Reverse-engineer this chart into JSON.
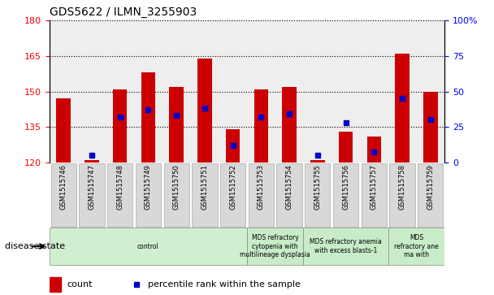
{
  "title": "GDS5622 / ILMN_3255903",
  "samples": [
    "GSM1515746",
    "GSM1515747",
    "GSM1515748",
    "GSM1515749",
    "GSM1515750",
    "GSM1515751",
    "GSM1515752",
    "GSM1515753",
    "GSM1515754",
    "GSM1515755",
    "GSM1515756",
    "GSM1515757",
    "GSM1515758",
    "GSM1515759"
  ],
  "counts": [
    147,
    121,
    151,
    158,
    152,
    164,
    134,
    151,
    152,
    121,
    133,
    131,
    166,
    150
  ],
  "percentile_ranks": [
    null,
    5,
    32,
    37,
    33,
    38,
    12,
    32,
    34,
    5,
    28,
    7,
    45,
    30
  ],
  "ymin": 120,
  "ymax": 180,
  "yleft_ticks": [
    120,
    135,
    150,
    165,
    180
  ],
  "yright_ticks": [
    0,
    25,
    50,
    75,
    100
  ],
  "yright_min": 0,
  "yright_max": 100,
  "bar_color": "#cc0000",
  "dot_color": "#0000cc",
  "bar_width": 0.5,
  "disease_groups": [
    {
      "label": "control",
      "start": 0,
      "end": 7,
      "color": "#d0f0d0"
    },
    {
      "label": "MDS refractory\ncytopenia with\nmultilineage dysplasia",
      "start": 7,
      "end": 9,
      "color": "#c8f0c8"
    },
    {
      "label": "MDS refractory anemia\nwith excess blasts-1",
      "start": 9,
      "end": 12,
      "color": "#c8f0c8"
    },
    {
      "label": "MDS\nrefractory ane\nma with",
      "start": 12,
      "end": 14,
      "color": "#c8f0c8"
    }
  ],
  "disease_state_label": "disease state",
  "legend_count_label": "count",
  "legend_pct_label": "percentile rank within the sample",
  "background_color": "#ffffff",
  "plot_bg_color": "#f0f0f0"
}
